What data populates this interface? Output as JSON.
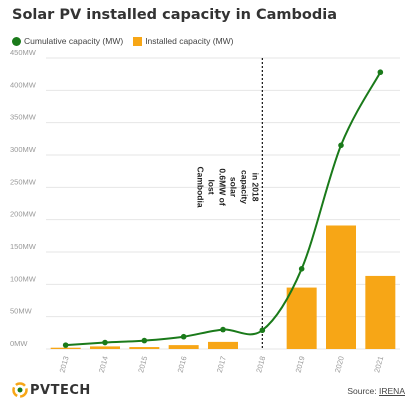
{
  "title": "Solar PV installed capacity in Cambodia",
  "legend": {
    "line_label": "Cumulative capacity (MW)",
    "bar_label": "Installed capacity (MW)"
  },
  "annotation": [
    "Cambodia",
    "lost",
    "0.6MW of",
    "solar",
    "capacity",
    "in 2018"
  ],
  "source_prefix": "Source:",
  "source_name": "IRENA",
  "logo": "PVTECH",
  "colors": {
    "line": "#1a7a1a",
    "bar": "#f7a616",
    "grid": "#e6e6e6",
    "axis_text": "#999999"
  },
  "chart_data": {
    "type": "bar",
    "categories": [
      "2013",
      "2014",
      "2015",
      "2016",
      "2017",
      "2018",
      "2019",
      "2020",
      "2021"
    ],
    "series": [
      {
        "name": "Installed capacity (MW)",
        "type": "bar",
        "values": [
          2,
          4,
          3,
          6,
          11,
          0,
          95,
          191,
          113
        ]
      },
      {
        "name": "Cumulative capacity (MW)",
        "type": "line",
        "values": [
          6,
          10,
          13,
          19,
          30,
          29,
          124,
          315,
          428
        ]
      }
    ],
    "yticks": [
      "0MW",
      "50MW",
      "100MW",
      "150MW",
      "200MW",
      "250MW",
      "300MW",
      "350MW",
      "400MW",
      "450MW"
    ],
    "ylim": [
      0,
      450
    ],
    "grid": true,
    "legend_position": "top-left",
    "marker_category": "2018"
  }
}
